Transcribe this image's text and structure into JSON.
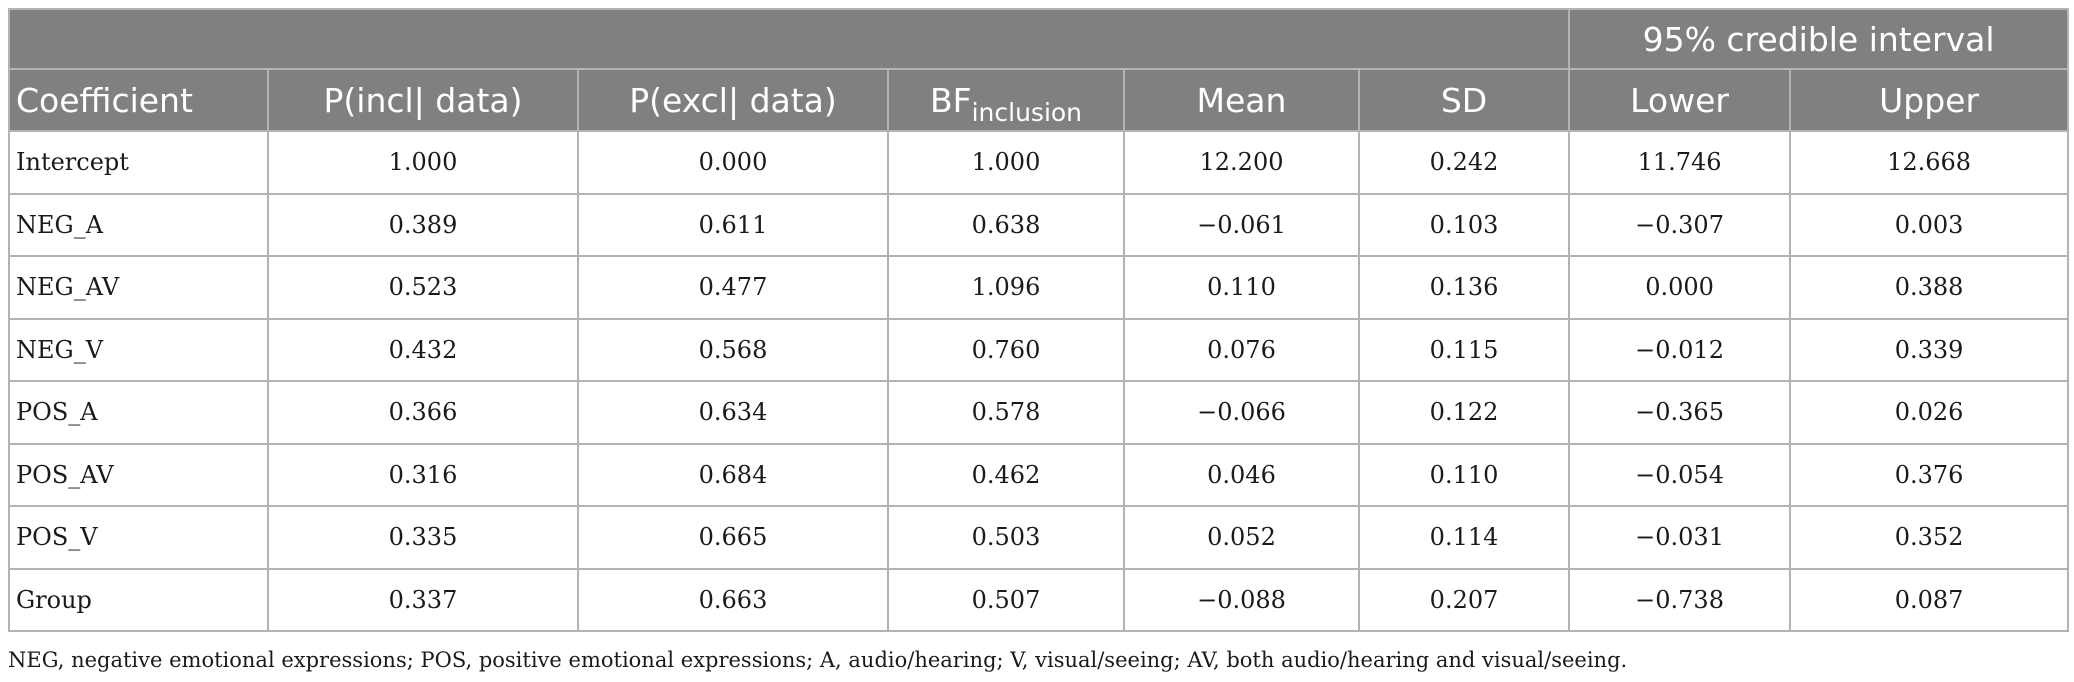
{
  "table": {
    "group_header": "95% credible interval",
    "columns": {
      "coefficient": "Coefficient",
      "p_incl": "P(incl| data)",
      "p_excl": "P(excl| data)",
      "bf_main": "BF",
      "bf_sub": "inclusion",
      "mean": "Mean",
      "sd": "SD",
      "lower": "Lower",
      "upper": "Upper"
    },
    "rows": [
      {
        "coefficient": "Intercept",
        "p_incl": "1.000",
        "p_excl": "0.000",
        "bf": "1.000",
        "mean": "12.200",
        "sd": "0.242",
        "lower": "11.746",
        "upper": "12.668"
      },
      {
        "coefficient": "NEG_A",
        "p_incl": "0.389",
        "p_excl": "0.611",
        "bf": "0.638",
        "mean": "−0.061",
        "sd": "0.103",
        "lower": "−0.307",
        "upper": "0.003"
      },
      {
        "coefficient": "NEG_AV",
        "p_incl": "0.523",
        "p_excl": "0.477",
        "bf": "1.096",
        "mean": "0.110",
        "sd": "0.136",
        "lower": "0.000",
        "upper": "0.388"
      },
      {
        "coefficient": "NEG_V",
        "p_incl": "0.432",
        "p_excl": "0.568",
        "bf": "0.760",
        "mean": "0.076",
        "sd": "0.115",
        "lower": "−0.012",
        "upper": "0.339"
      },
      {
        "coefficient": "POS_A",
        "p_incl": "0.366",
        "p_excl": "0.634",
        "bf": "0.578",
        "mean": "−0.066",
        "sd": "0.122",
        "lower": "−0.365",
        "upper": "0.026"
      },
      {
        "coefficient": "POS_AV",
        "p_incl": "0.316",
        "p_excl": "0.684",
        "bf": "0.462",
        "mean": "0.046",
        "sd": "0.110",
        "lower": "−0.054",
        "upper": "0.376"
      },
      {
        "coefficient": "POS_V",
        "p_incl": "0.335",
        "p_excl": "0.665",
        "bf": "0.503",
        "mean": "0.052",
        "sd": "0.114",
        "lower": "−0.031",
        "upper": "0.352"
      },
      {
        "coefficient": "Group",
        "p_incl": "0.337",
        "p_excl": "0.663",
        "bf": "0.507",
        "mean": "−0.088",
        "sd": "0.207",
        "lower": "−0.738",
        "upper": "0.087"
      }
    ]
  },
  "footnote": "NEG, negative emotional expressions; POS, positive emotional expressions; A, audio/hearing; V, visual/seeing; AV, both audio/hearing and visual/seeing.",
  "colors": {
    "header_bg": "#808080",
    "header_text": "#ffffff",
    "grid": "#b3b3b3"
  }
}
